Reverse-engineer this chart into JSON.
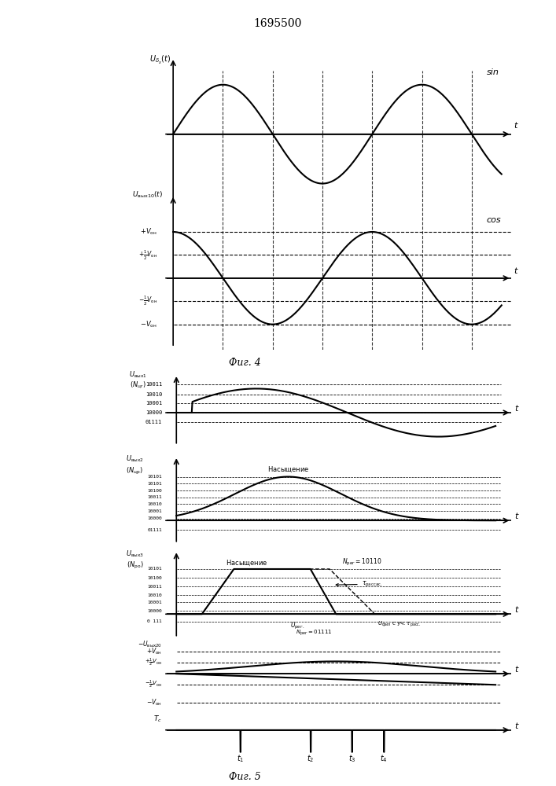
{
  "title": "1695500",
  "fig4_caption": "Фиг. 4",
  "fig5_caption": "Фиг. 5",
  "bg_color": "#ffffff",
  "line_color": "#000000"
}
